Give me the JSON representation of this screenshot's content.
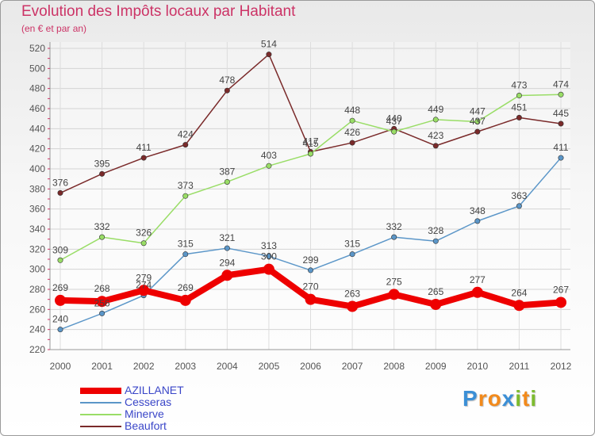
{
  "header": {
    "title": "Evolution des Impôts locaux par Habitant",
    "subtitle": "(en € et par an)"
  },
  "logo": {
    "letters": [
      "P",
      "r",
      "o",
      "x",
      "i",
      "t",
      "i"
    ],
    "colors": [
      "#3b8fd6",
      "#f28a1c",
      "#f28a1c",
      "#3b8fd6",
      "#7dbb2f",
      "#f28a1c",
      "#7dbb2f"
    ]
  },
  "chart_data": {
    "type": "line",
    "x": [
      "2000",
      "2001",
      "2002",
      "2003",
      "2004",
      "2005",
      "2006",
      "2007",
      "2008",
      "2009",
      "2010",
      "2011",
      "2012"
    ],
    "ylim": [
      220,
      520
    ],
    "yticks": [
      220,
      240,
      260,
      280,
      300,
      320,
      340,
      360,
      380,
      400,
      420,
      440,
      460,
      480,
      500,
      520
    ],
    "grid": true,
    "legend_position": "bottom-left",
    "series": [
      {
        "name": "AZILLANET",
        "color": "#ee0000",
        "values": [
          269,
          268,
          279,
          269,
          294,
          300,
          270,
          263,
          275,
          265,
          277,
          264,
          267
        ]
      },
      {
        "name": "Cesseras",
        "color": "#5b96c8",
        "values": [
          240,
          256,
          274,
          315,
          321,
          313,
          299,
          315,
          332,
          328,
          348,
          363,
          411
        ]
      },
      {
        "name": "Minerve",
        "color": "#99dd66",
        "values": [
          309,
          332,
          326,
          373,
          387,
          403,
          415,
          448,
          437,
          449,
          447,
          473,
          474
        ]
      },
      {
        "name": "Beaufort",
        "color": "#7a2a2a",
        "values": [
          376,
          395,
          411,
          424,
          478,
          514,
          417,
          426,
          440,
          423,
          437,
          451,
          445
        ]
      }
    ]
  }
}
